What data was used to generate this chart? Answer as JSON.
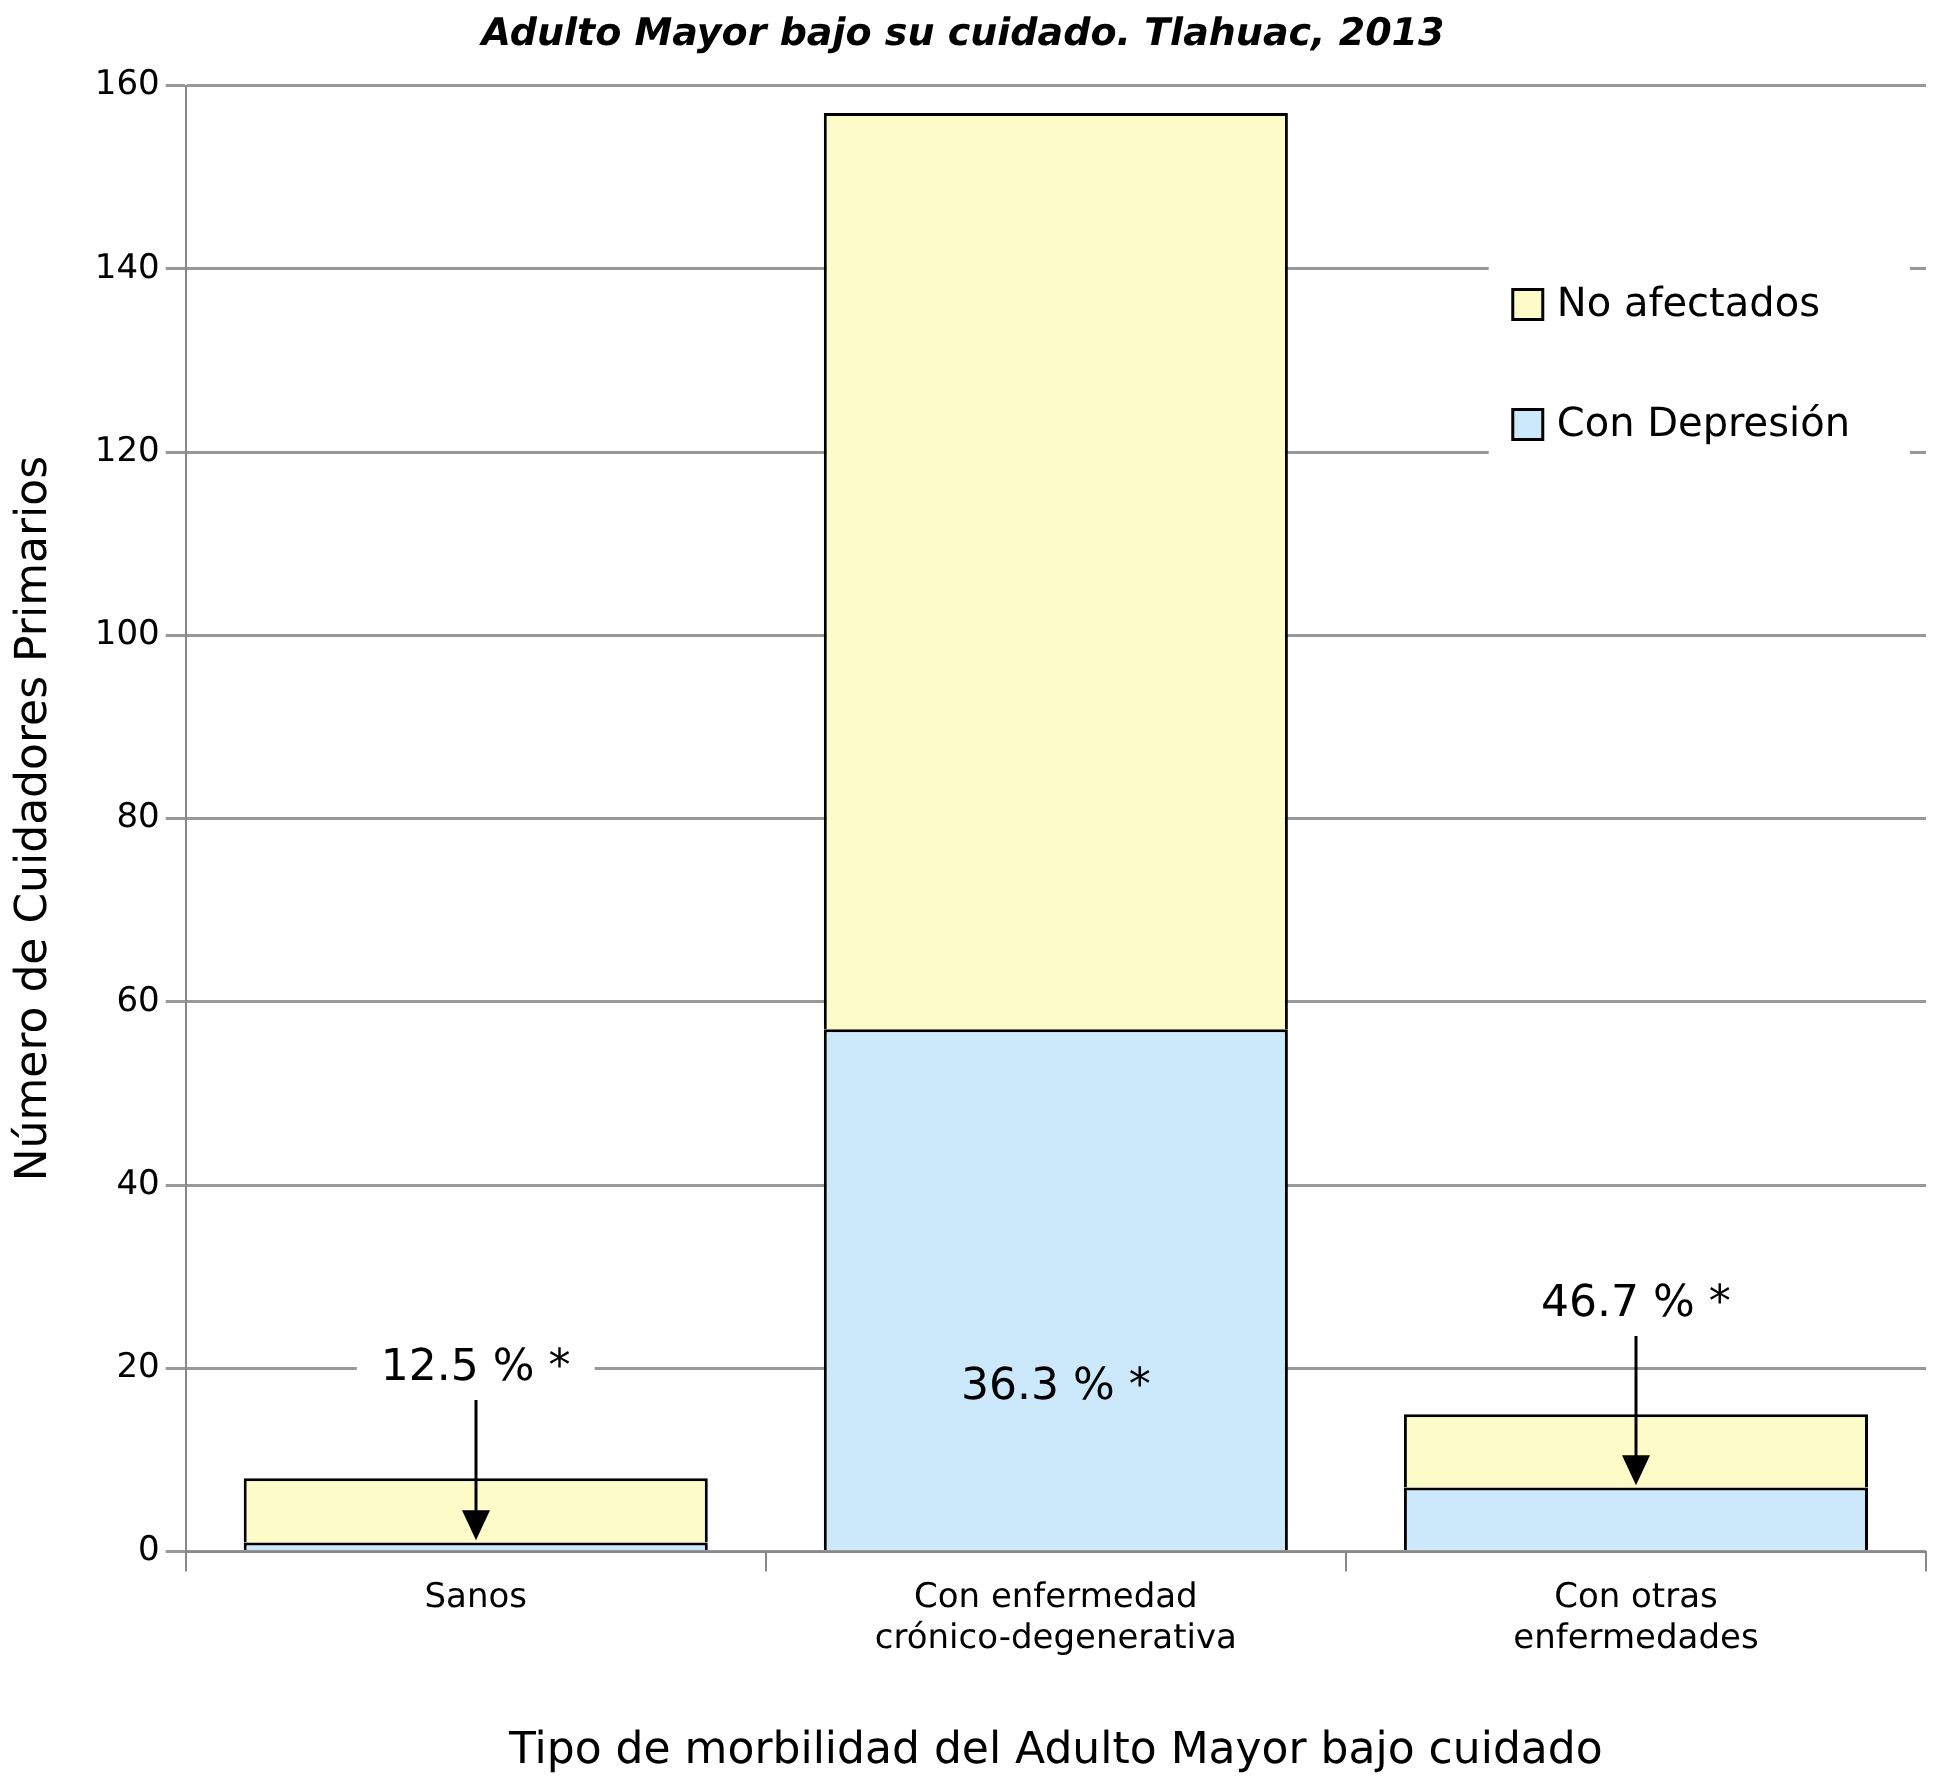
{
  "chart_data": {
    "type": "bar",
    "title": "Adulto Mayor bajo su cuidado. Tlahuac, 2013",
    "xlabel": "Tipo de morbilidad del Adulto Mayor bajo cuidado",
    "ylabel": "Número de Cuidadores Primarios",
    "categories": [
      "Sanos",
      "Con enfermedad crónico-degenerativa",
      "Con otras enfermedades"
    ],
    "series": [
      {
        "name": "Con Depresión",
        "color": "#cce9fb",
        "values": [
          1,
          57,
          7
        ]
      },
      {
        "name": "No afectados",
        "color": "#fdfcc8",
        "values": [
          7,
          100,
          8
        ]
      }
    ],
    "stacked": true,
    "ylim": [
      0,
      160
    ],
    "yticks": [
      0,
      20,
      40,
      60,
      80,
      100,
      120,
      140,
      160
    ],
    "grid": "y",
    "legend": "top right",
    "annotations": [
      "12.5 % *",
      "36.3 % *",
      "46.7 % *"
    ]
  }
}
